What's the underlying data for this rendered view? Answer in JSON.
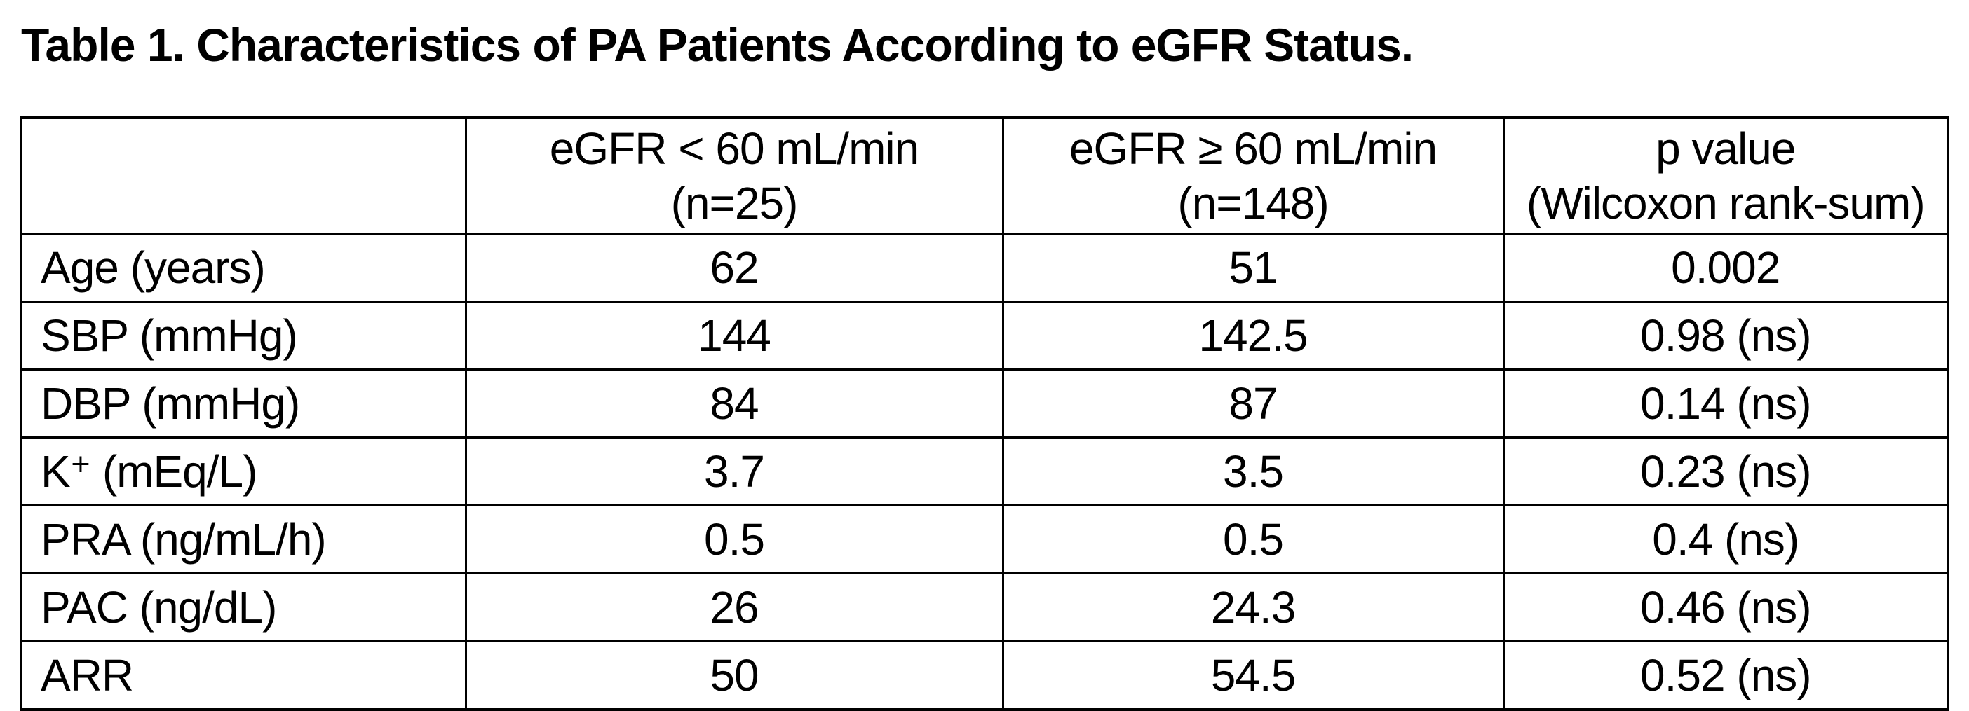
{
  "title": "Table 1. Characteristics of PA Patients According to eGFR Status.",
  "colors": {
    "text": "#000000",
    "border": "#000000",
    "background": "#ffffff"
  },
  "table": {
    "columns": [
      {
        "line1": "",
        "line2": ""
      },
      {
        "line1": "eGFR < 60 mL/min",
        "line2": "(n=25)"
      },
      {
        "line1": "eGFR ≥ 60 mL/min",
        "line2": "(n=148)"
      },
      {
        "line1": "p value",
        "line2": "(Wilcoxon rank-sum)"
      }
    ],
    "rows": [
      {
        "label": "Age (years)",
        "egfr_lt60": "62",
        "egfr_ge60": "51",
        "p_value": "0.002"
      },
      {
        "label": "SBP (mmHg)",
        "egfr_lt60": "144",
        "egfr_ge60": "142.5",
        "p_value": "0.98 (ns)"
      },
      {
        "label": "DBP (mmHg)",
        "egfr_lt60": "84",
        "egfr_ge60": "87",
        "p_value": "0.14 (ns)"
      },
      {
        "label": "K⁺ (mEq/L)",
        "egfr_lt60": "3.7",
        "egfr_ge60": "3.5",
        "p_value": "0.23 (ns)"
      },
      {
        "label": "PRA (ng/mL/h)",
        "egfr_lt60": "0.5",
        "egfr_ge60": "0.5",
        "p_value": "0.4 (ns)"
      },
      {
        "label": "PAC (ng/dL)",
        "egfr_lt60": "26",
        "egfr_ge60": "24.3",
        "p_value": "0.46 (ns)"
      },
      {
        "label": "ARR",
        "egfr_lt60": "50",
        "egfr_ge60": "54.5",
        "p_value": "0.52 (ns)"
      }
    ]
  }
}
